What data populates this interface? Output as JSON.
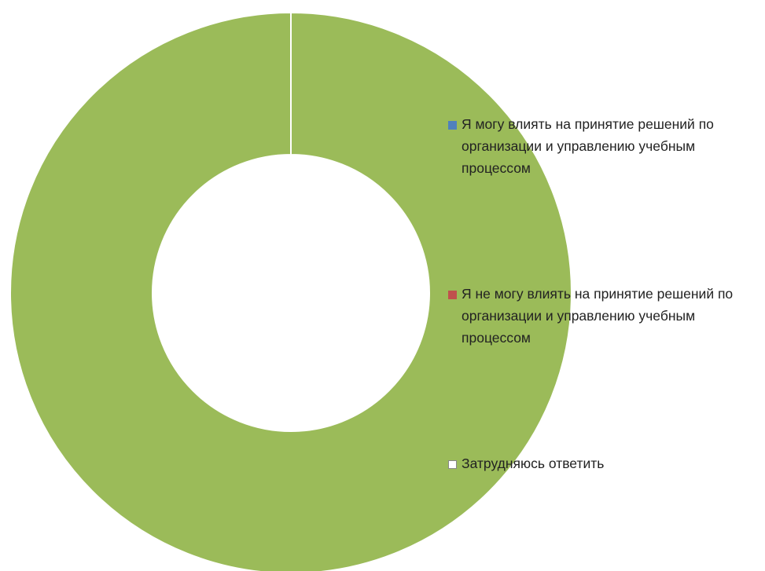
{
  "chart_data": {
    "type": "donut",
    "categories": [
      "Я могу влиять на принятие решений по организации и управлению учебным процессом",
      "Я не могу влиять на принятие решений по организации и управлению учебным процессом",
      "Затрудняюсь ответить",
      null
    ],
    "values": [
      0,
      0,
      0,
      100
    ],
    "colors": [
      "#4f81bd",
      "#c0504d",
      "#ffffff",
      "#9bbb59"
    ],
    "legend": "right"
  }
}
